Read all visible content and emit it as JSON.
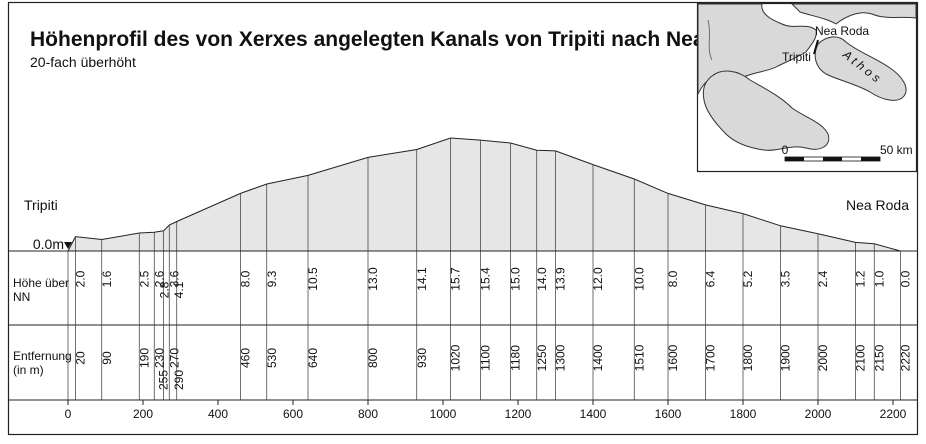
{
  "title": "Höhenprofil des von Xerxes angelegten Kanals von Tripiti nach Nea Roda",
  "subtitle": "20-fach überhöht",
  "start_label": "Tripiti",
  "end_label": "Nea Roda",
  "zero_label": "0.0m",
  "row_labels": {
    "height": [
      "Höhe über",
      "NN"
    ],
    "distance": [
      "Entfernung",
      "(in m)"
    ]
  },
  "colors": {
    "profile_fill": "#e6e6e6",
    "map_land": "#d9d9d9",
    "map_sea": "#ffffff"
  },
  "chart_data": {
    "type": "area",
    "xlabel": "Entfernung (in m)",
    "ylabel": "Höhe über NN",
    "xlim": [
      0,
      2220
    ],
    "x_ticks": [
      0,
      200,
      400,
      600,
      800,
      1000,
      1200,
      1400,
      1600,
      1800,
      2000,
      2200
    ],
    "points": [
      {
        "x": 0,
        "x_label": "0",
        "y": 0.0,
        "y_label": ""
      },
      {
        "x": 20,
        "x_label": "20",
        "y": 2.0,
        "y_label": "2.0"
      },
      {
        "x": 90,
        "x_label": "90",
        "y": 1.6,
        "y_label": "1.6"
      },
      {
        "x": 190,
        "x_label": "190",
        "y": 2.5,
        "y_label": "2.5"
      },
      {
        "x": 230,
        "x_label": "230",
        "y": 2.6,
        "y_label": "2.6"
      },
      {
        "x": 255,
        "x_label": "255",
        "y": 2.8,
        "y_label": "2.8"
      },
      {
        "x": 270,
        "x_label": "270",
        "y": 3.6,
        "y_label": "3.6"
      },
      {
        "x": 290,
        "x_label": "290",
        "y": 4.1,
        "y_label": "4.1"
      },
      {
        "x": 460,
        "x_label": "460",
        "y": 8.0,
        "y_label": "8.0"
      },
      {
        "x": 530,
        "x_label": "530",
        "y": 9.3,
        "y_label": "9.3"
      },
      {
        "x": 640,
        "x_label": "640",
        "y": 10.5,
        "y_label": "10.5"
      },
      {
        "x": 800,
        "x_label": "800",
        "y": 13.0,
        "y_label": "13.0"
      },
      {
        "x": 930,
        "x_label": "930",
        "y": 14.1,
        "y_label": "14.1"
      },
      {
        "x": 1020,
        "x_label": "1020",
        "y": 15.7,
        "y_label": "15.7"
      },
      {
        "x": 1100,
        "x_label": "1100",
        "y": 15.4,
        "y_label": "15.4"
      },
      {
        "x": 1180,
        "x_label": "1180",
        "y": 15.0,
        "y_label": "15.0"
      },
      {
        "x": 1250,
        "x_label": "1250",
        "y": 14.0,
        "y_label": "14.0"
      },
      {
        "x": 1300,
        "x_label": "1300",
        "y": 13.9,
        "y_label": "13.9"
      },
      {
        "x": 1400,
        "x_label": "1400",
        "y": 12.0,
        "y_label": "12.0"
      },
      {
        "x": 1510,
        "x_label": "1510",
        "y": 10.0,
        "y_label": "10.0"
      },
      {
        "x": 1600,
        "x_label": "1600",
        "y": 8.0,
        "y_label": "8.0"
      },
      {
        "x": 1700,
        "x_label": "1700",
        "y": 6.4,
        "y_label": "6.4"
      },
      {
        "x": 1800,
        "x_label": "1800",
        "y": 5.2,
        "y_label": "5.2"
      },
      {
        "x": 1900,
        "x_label": "1900",
        "y": 3.5,
        "y_label": "3.5"
      },
      {
        "x": 2000,
        "x_label": "2000",
        "y": 2.4,
        "y_label": "2.4"
      },
      {
        "x": 2100,
        "x_label": "2100",
        "y": 1.2,
        "y_label": "1.2"
      },
      {
        "x": 2150,
        "x_label": "2150",
        "y": 1.0,
        "y_label": "1.0"
      },
      {
        "x": 2220,
        "x_label": "2220",
        "y": 0.0,
        "y_label": "0.0"
      }
    ]
  },
  "inset_map": {
    "labels": {
      "nea_roda": "Nea Roda",
      "tripiti": "Tripiti",
      "athos": "A t h o s"
    },
    "scale": {
      "start": "0",
      "end": "50 km"
    }
  }
}
